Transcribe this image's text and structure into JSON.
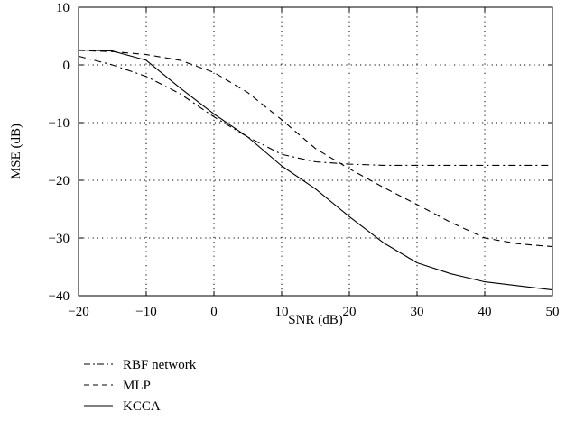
{
  "chart_data": {
    "type": "line",
    "title": "",
    "xlabel": "SNR (dB)",
    "ylabel": "MSE (dB)",
    "xlim": [
      -20,
      50
    ],
    "ylim": [
      -40,
      10
    ],
    "xticks": [
      -20,
      -10,
      0,
      10,
      20,
      30,
      40,
      50
    ],
    "yticks": [
      10,
      0,
      -10,
      -20,
      -30,
      -40
    ],
    "xtick_labels": [
      "−20",
      "−10",
      "0",
      "10",
      "20",
      "30",
      "40",
      "50"
    ],
    "ytick_labels": [
      "10",
      "0",
      "−10",
      "−20",
      "−30",
      "−40"
    ],
    "grid": true,
    "grid_style": "dotted",
    "legend_position": "below",
    "series": [
      {
        "name": "RBF network",
        "style": "dash-dot",
        "color": "#000000",
        "x": [
          -20,
          -15,
          -10,
          -5,
          0,
          5,
          10,
          15,
          20,
          25,
          30,
          35,
          40,
          45,
          50
        ],
        "y": [
          1.5,
          0,
          -2,
          -5,
          -9,
          -12.5,
          -15.5,
          -16.8,
          -17.2,
          -17.4,
          -17.4,
          -17.4,
          -17.4,
          -17.4,
          -17.4
        ]
      },
      {
        "name": "MLP",
        "style": "dashed",
        "color": "#000000",
        "x": [
          -20,
          -15,
          -10,
          -5,
          0,
          5,
          10,
          15,
          20,
          25,
          30,
          35,
          40,
          45,
          50
        ],
        "y": [
          2.5,
          2.3,
          1.8,
          0.8,
          -1.3,
          -4.8,
          -9.5,
          -14.5,
          -18,
          -21.2,
          -24.2,
          -27.3,
          -30,
          -31,
          -31.5
        ]
      },
      {
        "name": "KCCA",
        "style": "solid",
        "color": "#000000",
        "x": [
          -20,
          -15,
          -10,
          -5,
          0,
          5,
          10,
          15,
          20,
          25,
          30,
          35,
          40,
          45,
          50
        ],
        "y": [
          2.6,
          2.4,
          0.8,
          -4,
          -8.5,
          -12.5,
          -17.5,
          -21.5,
          -26.3,
          -30.8,
          -34.3,
          -36.2,
          -37.6,
          -38.3,
          -39
        ]
      }
    ]
  }
}
